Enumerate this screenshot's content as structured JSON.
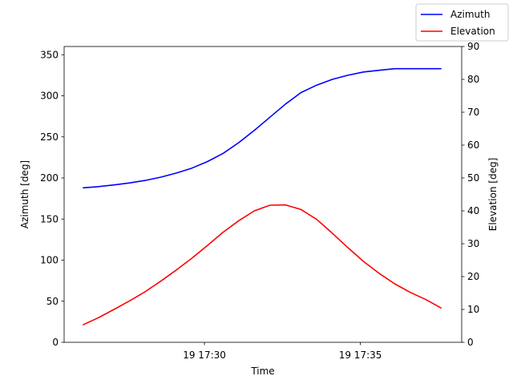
{
  "chart_data": {
    "type": "line",
    "title": "",
    "xlabel": "Time",
    "ylabel": "Azimuth [deg]",
    "y2label": "Elevation [deg]",
    "x_unit": "minutes past 19 17:00",
    "xlim": [
      25.5,
      38.25
    ],
    "ylim": [
      0,
      360
    ],
    "y2lim": [
      0,
      90
    ],
    "x_ticks": [
      {
        "value": 30,
        "label": "19 17:30"
      },
      {
        "value": 35,
        "label": "19 17:35"
      }
    ],
    "y_ticks": [
      "0",
      "50",
      "100",
      "150",
      "200",
      "250",
      "300",
      "350"
    ],
    "y2_ticks": [
      "0",
      "10",
      "20",
      "30",
      "40",
      "50",
      "60",
      "70",
      "80",
      "90"
    ],
    "legend_position": "top-right",
    "grid": false,
    "x": [
      26.1,
      26.6,
      27.1,
      27.6,
      28.1,
      28.6,
      29.1,
      29.6,
      30.1,
      30.6,
      31.1,
      31.6,
      32.1,
      32.6,
      33.1,
      33.6,
      34.1,
      34.6,
      35.1,
      35.6,
      36.1,
      36.6,
      37.1,
      37.6
    ],
    "series": [
      {
        "name": "Azimuth",
        "axis": "left",
        "color": "#0000ff",
        "values": [
          188,
          189.5,
          191.5,
          194,
          197,
          201,
          206,
          212,
          220,
          230,
          243,
          258,
          274,
          290,
          304,
          313,
          320,
          325,
          329,
          331,
          333,
          333,
          333,
          333
        ]
      },
      {
        "name": "Elevation",
        "axis": "right",
        "color": "#ff0000",
        "values": [
          5.3,
          7.5,
          10.0,
          12.6,
          15.4,
          18.6,
          22.0,
          25.6,
          29.5,
          33.5,
          37.0,
          40.0,
          41.7,
          41.8,
          40.4,
          37.4,
          33.2,
          28.8,
          24.6,
          21.0,
          17.8,
          15.2,
          13.0,
          10.4
        ]
      }
    ]
  }
}
